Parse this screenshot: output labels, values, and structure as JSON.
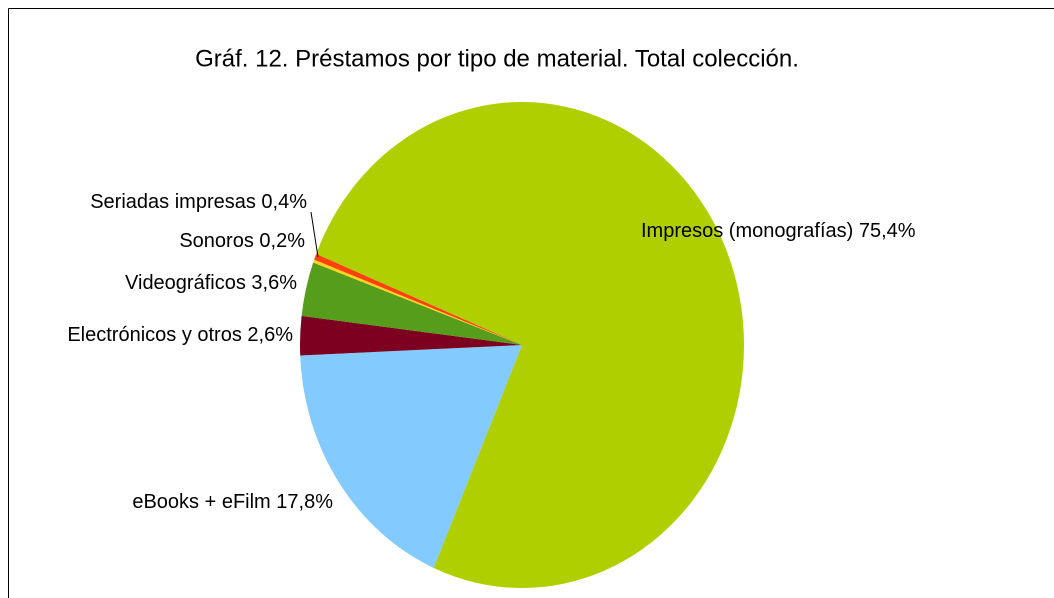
{
  "chart_data": {
    "type": "pie",
    "title": "Gráf. 12. Préstamos por tipo de material. Total colección.",
    "categories": [
      "Impresos (monografías)",
      "eBooks + eFilm",
      "Electrónicos y otros",
      "Videográficos",
      "Sonoros",
      "Seriadas impresas"
    ],
    "values": [
      75.4,
      17.8,
      2.6,
      3.6,
      0.2,
      0.4
    ],
    "value_labels": [
      "75,4%",
      "17,8%",
      "2,6%",
      "3,6%",
      "0,2%",
      "0,4%"
    ],
    "colors": [
      "#b0cf00",
      "#83caff",
      "#7e0021",
      "#579d1c",
      "#ffd320",
      "#ff420e"
    ]
  }
}
